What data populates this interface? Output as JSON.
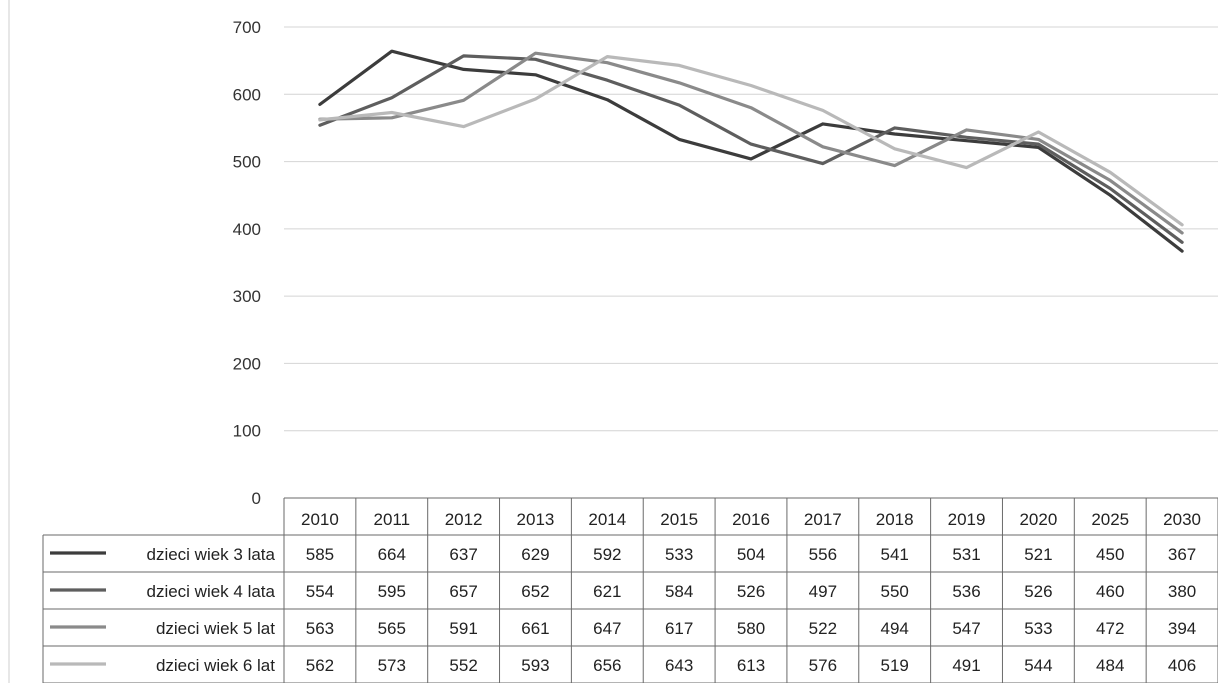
{
  "chart_data": {
    "type": "line",
    "categories": [
      "2010",
      "2011",
      "2012",
      "2013",
      "2014",
      "2015",
      "2016",
      "2017",
      "2018",
      "2019",
      "2020",
      "2025",
      "2030"
    ],
    "ylim": [
      0,
      700
    ],
    "yticks": [
      "0",
      "100",
      "200",
      "300",
      "400",
      "500",
      "600",
      "700"
    ],
    "grid": true,
    "legend": "data-table-left",
    "series": [
      {
        "name": "dzieci wiek 3 lata",
        "color": "#3c3c3c",
        "values": [
          585,
          664,
          637,
          629,
          592,
          533,
          504,
          556,
          541,
          531,
          521,
          450,
          367
        ]
      },
      {
        "name": "dzieci wiek 4 lata",
        "color": "#5e5e5e",
        "values": [
          554,
          595,
          657,
          652,
          621,
          584,
          526,
          497,
          550,
          536,
          526,
          460,
          380
        ]
      },
      {
        "name": "dzieci wiek 5 lat",
        "color": "#8a8a8a",
        "values": [
          563,
          565,
          591,
          661,
          647,
          617,
          580,
          522,
          494,
          547,
          533,
          472,
          394
        ]
      },
      {
        "name": "dzieci wiek 6 lat",
        "color": "#b9b9b9",
        "values": [
          562,
          573,
          552,
          593,
          656,
          643,
          613,
          576,
          519,
          491,
          544,
          484,
          406
        ]
      }
    ]
  }
}
